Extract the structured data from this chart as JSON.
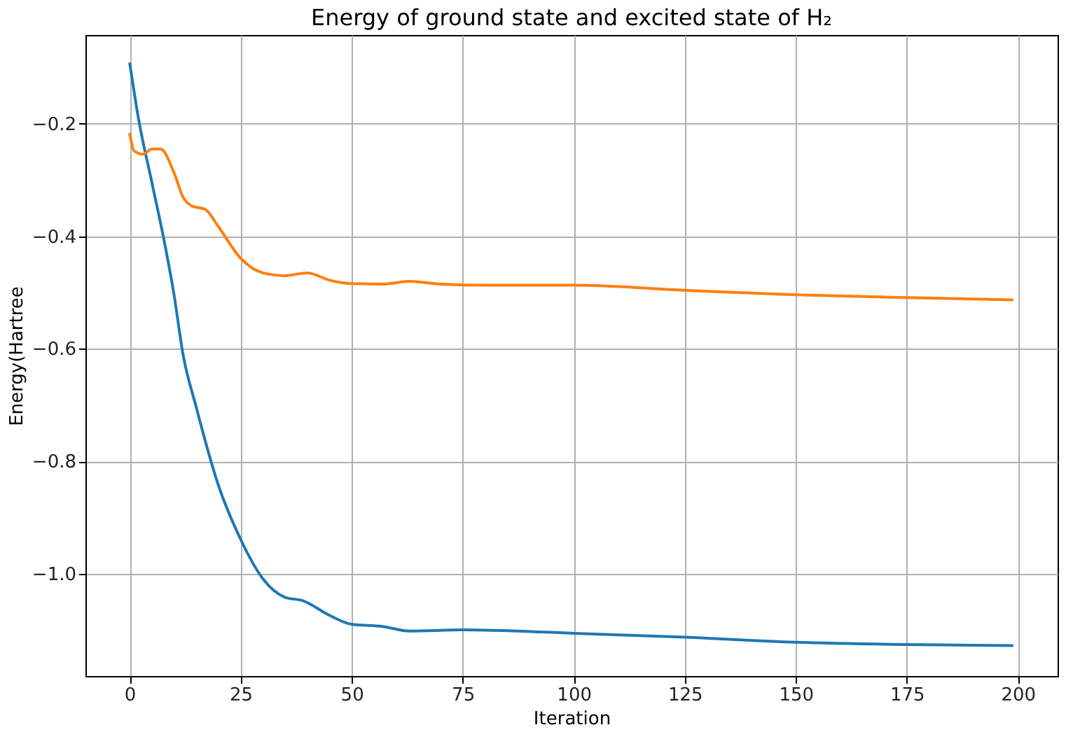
{
  "chart_data": {
    "type": "line",
    "title": "Energy of ground state and excited state of H₂",
    "xlabel": "Iteration",
    "ylabel": "Energy(Hartree",
    "xlim": [
      -9.95,
      208.95
    ],
    "xticks": [
      0,
      25,
      50,
      75,
      100,
      125,
      150,
      175,
      200
    ],
    "ylim": [
      -1.182,
      -0.042
    ],
    "yticks": [
      {
        "value": -1.0,
        "label": "−1.0"
      },
      {
        "value": -0.8,
        "label": "−0.8"
      },
      {
        "value": -0.6,
        "label": "−0.6"
      },
      {
        "value": -0.4,
        "label": "−0.4"
      },
      {
        "value": -0.2,
        "label": "−0.2"
      }
    ],
    "grid": true,
    "legend": false,
    "series": [
      {
        "color": "#1f77b4",
        "x": [
          0,
          2,
          5,
          8,
          10,
          12,
          15,
          20,
          25,
          30,
          35,
          39,
          45,
          50,
          57,
          63,
          75,
          100,
          125,
          150,
          175,
          199
        ],
        "values": [
          -0.091,
          -0.191,
          -0.304,
          -0.417,
          -0.504,
          -0.609,
          -0.704,
          -0.843,
          -0.939,
          -1.009,
          -1.042,
          -1.048,
          -1.074,
          -1.09,
          -1.094,
          -1.102,
          -1.1,
          -1.106,
          -1.113,
          -1.122,
          -1.126,
          -1.128
        ]
      },
      {
        "color": "#ff7f0e",
        "x": [
          0,
          1,
          3,
          5,
          7,
          10,
          12,
          14,
          17,
          20,
          25,
          30,
          35,
          40,
          45,
          50,
          57,
          63,
          70,
          80,
          100,
          125,
          150,
          175,
          199
        ],
        "values": [
          -0.216,
          -0.248,
          -0.254,
          -0.245,
          -0.245,
          -0.287,
          -0.33,
          -0.346,
          -0.352,
          -0.383,
          -0.439,
          -0.465,
          -0.47,
          -0.465,
          -0.478,
          -0.484,
          -0.485,
          -0.48,
          -0.485,
          -0.487,
          -0.487,
          -0.496,
          -0.504,
          -0.509,
          -0.513
        ]
      }
    ]
  }
}
